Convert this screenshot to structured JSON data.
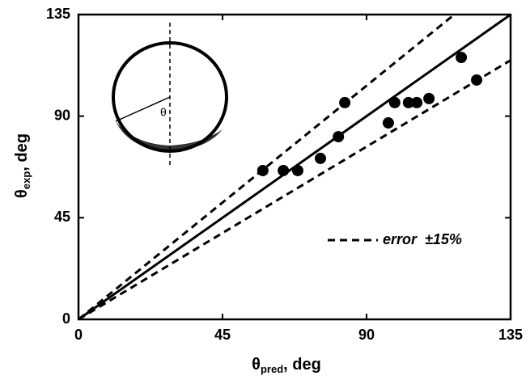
{
  "chart_data": {
    "type": "scatter",
    "x_label": {
      "symbol": "θ",
      "sub": "pred",
      "rest": ", deg"
    },
    "y_label": {
      "symbol": "θ",
      "sub": "exp",
      "rest": ", deg"
    },
    "inset_label": "θ",
    "xlim": [
      0,
      135
    ],
    "ylim": [
      0,
      135
    ],
    "xticks": [
      0,
      45,
      90,
      135
    ],
    "yticks": [
      0,
      45,
      90,
      135
    ],
    "points": {
      "color": "#000",
      "x": [
        57.6,
        64.0,
        68.5,
        75.6,
        81.2,
        83.2,
        96.8,
        98.8,
        103.1,
        105.7,
        109.5,
        119.6,
        124.4
      ],
      "values": [
        65.9,
        65.9,
        65.9,
        71.3,
        80.9,
        96.0,
        87.0,
        96.0,
        96.0,
        96.0,
        97.8,
        116.0,
        106.0
      ]
    },
    "lines": [
      {
        "style": "solid",
        "color": "#000",
        "x": [
          0,
          135
        ],
        "values": [
          0,
          135
        ]
      },
      {
        "name": "error  ±15%",
        "style": "dashed",
        "color": "#000",
        "x": [
          0,
          117.4
        ],
        "values": [
          0,
          135
        ]
      },
      {
        "style": "dashed",
        "color": "#000",
        "x": [
          0,
          135
        ],
        "values": [
          0,
          114.75
        ]
      }
    ],
    "legend": "lower right"
  }
}
